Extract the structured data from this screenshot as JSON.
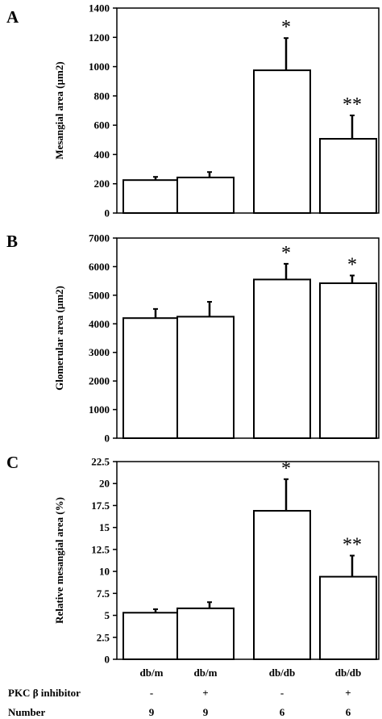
{
  "chart_data": [
    {
      "type": "bar",
      "panel": "A",
      "ylabel": "Mesangial area (µm2)",
      "ylim": [
        0,
        1400
      ],
      "yticks": [
        0,
        200,
        400,
        600,
        800,
        1000,
        1200,
        1400
      ],
      "categories": [
        "db/m",
        "db/m",
        "db/db",
        "db/db"
      ],
      "values": [
        225,
        243,
        975,
        507
      ],
      "error": [
        22,
        37,
        220,
        160
      ],
      "annotations": [
        "",
        "",
        "*",
        "**"
      ]
    },
    {
      "type": "bar",
      "panel": "B",
      "ylabel": "Glomerular area (µm2)",
      "ylim": [
        0,
        7000
      ],
      "yticks": [
        0,
        1000,
        2000,
        3000,
        4000,
        5000,
        6000,
        7000
      ],
      "categories": [
        "db/m",
        "db/m",
        "db/db",
        "db/db"
      ],
      "values": [
        4200,
        4250,
        5550,
        5420
      ],
      "error": [
        320,
        520,
        550,
        270
      ],
      "annotations": [
        "",
        "",
        "*",
        "*"
      ]
    },
    {
      "type": "bar",
      "panel": "C",
      "ylabel": "Relative mesangial area (%)",
      "ylim": [
        0,
        22.5
      ],
      "yticks": [
        0,
        2.5,
        5,
        7.5,
        10,
        12.5,
        15,
        17.5,
        20,
        22.5
      ],
      "categories": [
        "db/m",
        "db/m",
        "db/db",
        "db/db"
      ],
      "values": [
        5.3,
        5.8,
        16.9,
        9.4
      ],
      "error": [
        0.4,
        0.7,
        3.6,
        2.4
      ],
      "annotations": [
        "",
        "",
        "*",
        "**"
      ]
    }
  ],
  "footer": {
    "groups": [
      "db/m",
      "db/m",
      "db/db",
      "db/db"
    ],
    "inhibitor_label": "PKC β inhibitor",
    "inhibitor": [
      "-",
      "+",
      "-",
      "+"
    ],
    "number_label": "Number",
    "numbers": [
      "9",
      "9",
      "6",
      "6"
    ]
  }
}
